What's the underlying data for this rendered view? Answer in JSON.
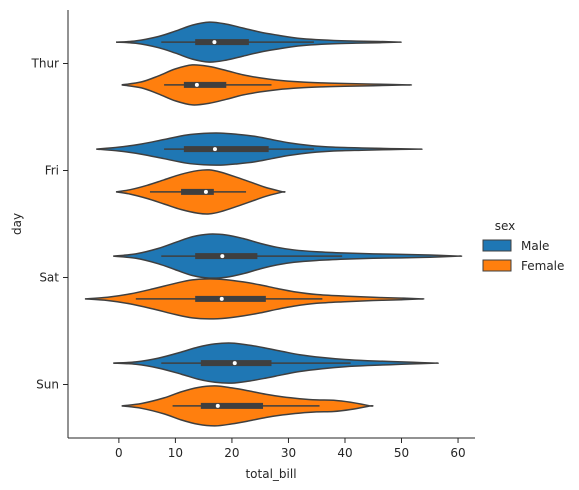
{
  "chart_data": {
    "type": "violin",
    "orientation": "horizontal",
    "xlabel": "total_bill",
    "ylabel": "day",
    "xlim": [
      -9,
      63
    ],
    "xticks": [
      0,
      10,
      20,
      30,
      40,
      50,
      60
    ],
    "categories": [
      "Thur",
      "Fri",
      "Sat",
      "Sun"
    ],
    "legend": {
      "title": "sex",
      "placement": "right"
    },
    "grid": false,
    "series": [
      {
        "name": "Male",
        "color": "#1f77b4",
        "violins": [
          {
            "day": "Thur",
            "min": -0.5,
            "max": 49.5,
            "q1": 13.5,
            "median": 16.9,
            "q3": 23.0,
            "whisker_low": 7.5,
            "whisker_high": 34.5,
            "halfwidth": 20,
            "profile": [
              [
                -0.5,
                0.0
              ],
              [
                3,
                0.06
              ],
              [
                7,
                0.28
              ],
              [
                10,
                0.55
              ],
              [
                13,
                0.85
              ],
              [
                16,
                1.0
              ],
              [
                19,
                0.9
              ],
              [
                22,
                0.7
              ],
              [
                25,
                0.5
              ],
              [
                28,
                0.35
              ],
              [
                31,
                0.22
              ],
              [
                34,
                0.14
              ],
              [
                38,
                0.08
              ],
              [
                42,
                0.05
              ],
              [
                46,
                0.03
              ],
              [
                49.5,
                0.0
              ]
            ]
          },
          {
            "day": "Fri",
            "min": -4,
            "max": 53,
            "q1": 11.5,
            "median": 17.0,
            "q3": 26.5,
            "whisker_low": 8.0,
            "whisker_high": 34.5,
            "halfwidth": 16,
            "profile": [
              [
                -4,
                0.0
              ],
              [
                0,
                0.12
              ],
              [
                4,
                0.32
              ],
              [
                8,
                0.6
              ],
              [
                12,
                0.88
              ],
              [
                15,
                0.98
              ],
              [
                18,
                1.0
              ],
              [
                21,
                0.92
              ],
              [
                24,
                0.8
              ],
              [
                27,
                0.6
              ],
              [
                30,
                0.4
              ],
              [
                34,
                0.22
              ],
              [
                38,
                0.12
              ],
              [
                43,
                0.07
              ],
              [
                48,
                0.03
              ],
              [
                53,
                0.0
              ]
            ]
          },
          {
            "day": "Sat",
            "min": -1,
            "max": 60,
            "q1": 13.5,
            "median": 18.3,
            "q3": 24.5,
            "whisker_low": 7.5,
            "whisker_high": 39.5,
            "halfwidth": 22,
            "profile": [
              [
                -1,
                0.0
              ],
              [
                3,
                0.1
              ],
              [
                7,
                0.35
              ],
              [
                10,
                0.62
              ],
              [
                13,
                0.88
              ],
              [
                16,
                1.0
              ],
              [
                19,
                0.96
              ],
              [
                22,
                0.8
              ],
              [
                25,
                0.58
              ],
              [
                28,
                0.4
              ],
              [
                31,
                0.28
              ],
              [
                35,
                0.2
              ],
              [
                40,
                0.14
              ],
              [
                45,
                0.1
              ],
              [
                50,
                0.08
              ],
              [
                55,
                0.05
              ],
              [
                60,
                0.0
              ]
            ]
          },
          {
            "day": "Sun",
            "min": -1,
            "max": 56,
            "q1": 14.5,
            "median": 20.5,
            "q3": 27.0,
            "whisker_low": 7.5,
            "whisker_high": 41.0,
            "halfwidth": 20,
            "profile": [
              [
                -1,
                0.0
              ],
              [
                3,
                0.06
              ],
              [
                7,
                0.25
              ],
              [
                11,
                0.55
              ],
              [
                14,
                0.8
              ],
              [
                17,
                0.96
              ],
              [
                20,
                1.0
              ],
              [
                23,
                0.9
              ],
              [
                26,
                0.75
              ],
              [
                29,
                0.58
              ],
              [
                32,
                0.42
              ],
              [
                36,
                0.28
              ],
              [
                40,
                0.18
              ],
              [
                44,
                0.12
              ],
              [
                48,
                0.08
              ],
              [
                52,
                0.04
              ],
              [
                56,
                0.0
              ]
            ]
          }
        ]
      },
      {
        "name": "Female",
        "color": "#ff7f0e",
        "violins": [
          {
            "day": "Thur",
            "min": 0.5,
            "max": 51,
            "q1": 11.5,
            "median": 13.8,
            "q3": 19.0,
            "whisker_low": 8.0,
            "whisker_high": 27.0,
            "halfwidth": 20,
            "profile": [
              [
                0.5,
                0.0
              ],
              [
                4,
                0.15
              ],
              [
                7,
                0.45
              ],
              [
                10,
                0.8
              ],
              [
                13,
                1.0
              ],
              [
                16,
                0.92
              ],
              [
                19,
                0.72
              ],
              [
                22,
                0.5
              ],
              [
                25,
                0.35
              ],
              [
                28,
                0.24
              ],
              [
                32,
                0.15
              ],
              [
                36,
                0.1
              ],
              [
                40,
                0.07
              ],
              [
                45,
                0.04
              ],
              [
                51,
                0.0
              ]
            ]
          },
          {
            "day": "Fri",
            "min": -0.5,
            "max": 29,
            "q1": 11.0,
            "median": 15.4,
            "q3": 16.8,
            "whisker_low": 5.5,
            "whisker_high": 22.5,
            "halfwidth": 22,
            "profile": [
              [
                -0.5,
                0.0
              ],
              [
                2,
                0.1
              ],
              [
                5,
                0.3
              ],
              [
                8,
                0.55
              ],
              [
                11,
                0.8
              ],
              [
                14,
                0.97
              ],
              [
                16,
                1.0
              ],
              [
                18,
                0.9
              ],
              [
                21,
                0.65
              ],
              [
                24,
                0.38
              ],
              [
                26,
                0.2
              ],
              [
                29,
                0.0
              ]
            ]
          },
          {
            "day": "Sat",
            "min": -6,
            "max": 53.5,
            "q1": 13.5,
            "median": 18.2,
            "q3": 26.0,
            "whisker_low": 3.0,
            "whisker_high": 36.0,
            "halfwidth": 20,
            "profile": [
              [
                -6,
                0.0
              ],
              [
                -2,
                0.08
              ],
              [
                2,
                0.25
              ],
              [
                6,
                0.5
              ],
              [
                10,
                0.78
              ],
              [
                13,
                0.95
              ],
              [
                16,
                1.0
              ],
              [
                19,
                0.96
              ],
              [
                22,
                0.85
              ],
              [
                25,
                0.7
              ],
              [
                28,
                0.52
              ],
              [
                31,
                0.36
              ],
              [
                35,
                0.22
              ],
              [
                40,
                0.14
              ],
              [
                45,
                0.08
              ],
              [
                50,
                0.04
              ],
              [
                53.5,
                0.0
              ]
            ]
          },
          {
            "day": "Sun",
            "min": 0.5,
            "max": 44.5,
            "q1": 14.5,
            "median": 17.5,
            "q3": 25.5,
            "whisker_low": 9.5,
            "whisker_high": 35.5,
            "halfwidth": 20,
            "profile": [
              [
                0.5,
                0.0
              ],
              [
                4,
                0.12
              ],
              [
                8,
                0.4
              ],
              [
                11,
                0.7
              ],
              [
                14,
                0.92
              ],
              [
                17,
                1.0
              ],
              [
                20,
                0.9
              ],
              [
                23,
                0.75
              ],
              [
                26,
                0.58
              ],
              [
                29,
                0.45
              ],
              [
                32,
                0.36
              ],
              [
                35,
                0.3
              ],
              [
                38,
                0.28
              ],
              [
                41,
                0.18
              ],
              [
                44.5,
                0.0
              ]
            ]
          }
        ]
      }
    ]
  }
}
